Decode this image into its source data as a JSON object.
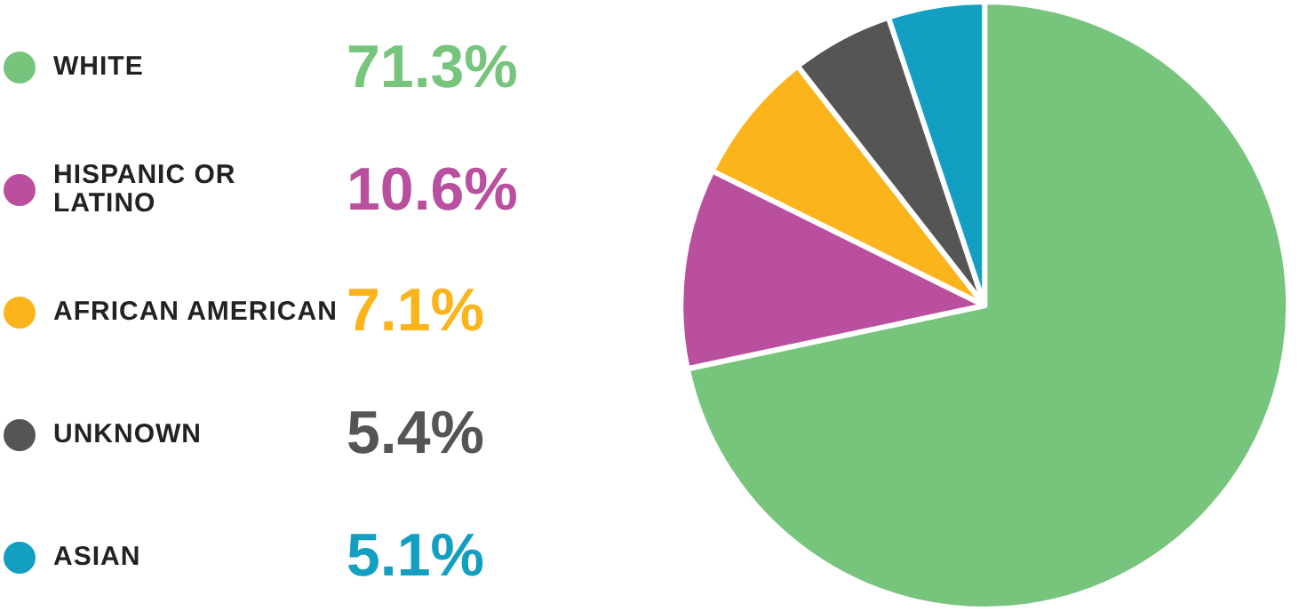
{
  "chart_data": {
    "type": "pie",
    "categories": [
      "WHITE",
      "HISPANIC OR LATINO",
      "AFRICAN AMERICAN",
      "UNKNOWN",
      "ASIAN"
    ],
    "values": [
      71.3,
      10.6,
      7.1,
      5.4,
      5.1
    ],
    "value_labels": [
      "71.3%",
      "10.6%",
      "7.1%",
      "5.4%",
      "5.1%"
    ],
    "colors": [
      "#77c57d",
      "#b94f9e",
      "#fbb41b",
      "#555555",
      "#139fc1"
    ],
    "legend": "left"
  }
}
